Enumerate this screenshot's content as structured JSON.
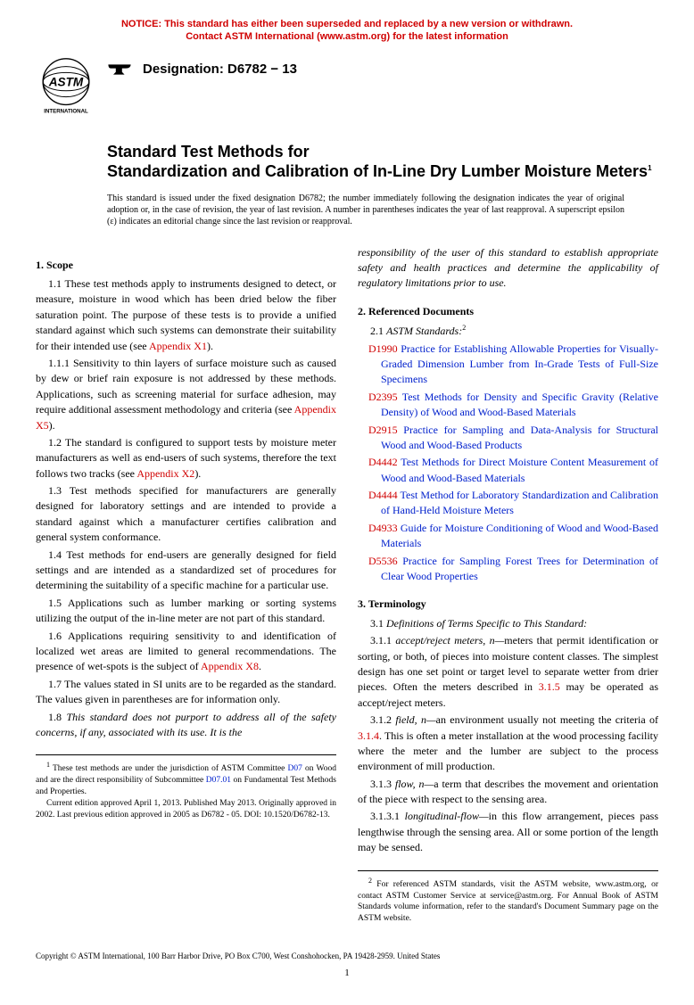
{
  "notice": {
    "line1": "NOTICE: This standard has either been superseded and replaced by a new version or withdrawn.",
    "line2": "Contact ASTM International (www.astm.org) for the latest information"
  },
  "designation": {
    "label": "Designation: D6782 − 13"
  },
  "title": {
    "line1": "Standard Test Methods for",
    "line2": "Standardization and Calibration of In-Line Dry Lumber Moisture Meters",
    "sup": "1"
  },
  "issuance": "This standard is issued under the fixed designation D6782; the number immediately following the designation indicates the year of original adoption or, in the case of revision, the year of last revision. A number in parentheses indicates the year of last reapproval. A superscript epsilon (ε) indicates an editorial change since the last revision or reapproval.",
  "left": {
    "scope_head": "1. Scope",
    "p1_1a": "1.1 These test methods apply to instruments designed to detect, or measure, moisture in wood which has been dried below the fiber saturation point. The purpose of these tests is to provide a unified standard against which such systems can demonstrate their suitability for their intended use (see ",
    "p1_1_link": "Appendix X1",
    "p1_1b": ").",
    "p1_1_1a": "1.1.1 Sensitivity to thin layers of surface moisture such as caused by dew or brief rain exposure is not addressed by these methods. Applications, such as screening material for surface adhesion, may require additional assessment methodology and criteria (see ",
    "p1_1_1_link": "Appendix X5",
    "p1_1_1b": ").",
    "p1_2a": "1.2 The standard is configured to support tests by moisture meter manufacturers as well as end-users of such systems, therefore the text follows two tracks (see ",
    "p1_2_link": "Appendix X2",
    "p1_2b": ").",
    "p1_3": "1.3 Test methods specified for manufacturers are generally designed for laboratory settings and are intended to provide a standard against which a manufacturer certifies calibration and general system conformance.",
    "p1_4": "1.4 Test methods for end-users are generally designed for field settings and are intended as a standardized set of procedures for determining the suitability of a specific machine for a particular use.",
    "p1_5": "1.5 Applications such as lumber marking or sorting systems utilizing the output of the in-line meter are not part of this standard.",
    "p1_6a": "1.6 Applications requiring sensitivity to and identification of localized wet areas are limited to general recommendations. The presence of wet-spots is the subject of ",
    "p1_6_link": "Appendix X8",
    "p1_6b": ".",
    "p1_7": "1.7 The values stated in SI units are to be regarded as the standard. The values given in parentheses are for information only.",
    "p1_8a": "1.8 ",
    "p1_8b": "This standard does not purport to address all of the safety concerns, if any, associated with its use. It is the",
    "fn1a": " These test methods are under the jurisdiction of ASTM Committee ",
    "fn1_link1": "D07",
    "fn1b": " on Wood and are the direct responsibility of Subcommittee ",
    "fn1_link2": "D07.01",
    "fn1c": " on Fundamental Test Methods and Properties.",
    "fn1d": "Current edition approved April 1, 2013. Published May 2013. Originally approved in 2002. Last previous edition approved in 2005 as D6782 - 05. DOI: 10.1520/D6782-13."
  },
  "right": {
    "p1_8c": "responsibility of the user of this standard to establish appropriate safety and health practices and determine the applicability of regulatory limitations prior to use.",
    "refdocs_head": "2. Referenced Documents",
    "p2_1": "2.1 ",
    "p2_1b": "ASTM Standards:",
    "p2_1_sup": "2",
    "refs": [
      {
        "code": "D1990",
        "text": " Practice for Establishing Allowable Properties for Visually-Graded Dimension Lumber from In-Grade Tests of Full-Size Specimens"
      },
      {
        "code": "D2395",
        "text": " Test Methods for Density and Specific Gravity (Relative Density) of Wood and Wood-Based Materials"
      },
      {
        "code": "D2915",
        "text": " Practice for Sampling and Data-Analysis for Structural Wood and Wood-Based Products"
      },
      {
        "code": "D4442",
        "text": " Test Methods for Direct Moisture Content Measurement of Wood and Wood-Based Materials"
      },
      {
        "code": "D4444",
        "text": " Test Method for Laboratory Standardization and Calibration of Hand-Held Moisture Meters"
      },
      {
        "code": "D4933",
        "text": " Guide for Moisture Conditioning of Wood and Wood-Based Materials"
      },
      {
        "code": "D5536",
        "text": " Practice for Sampling Forest Trees for Determination of Clear Wood Properties"
      }
    ],
    "term_head": "3. Terminology",
    "p3_1": "3.1 ",
    "p3_1b": "Definitions of Terms Specific to This Standard:",
    "p3_1_1_num": "3.1.1 ",
    "p3_1_1_term": "accept/reject meters, n—",
    "p3_1_1a": "meters that permit identification or sorting, or both, of pieces into moisture content classes. The simplest design has one set point or target level to separate wetter from drier pieces. Often the meters described in ",
    "p3_1_1_link": "3.1.5",
    "p3_1_1b": " may be operated as accept/reject meters.",
    "p3_1_2_num": "3.1.2 ",
    "p3_1_2_term": "field, n—",
    "p3_1_2a": "an environment usually not meeting the criteria of ",
    "p3_1_2_link": "3.1.4",
    "p3_1_2b": ". This is often a meter installation at the wood processing facility where the meter and the lumber are subject to the process environment of mill production.",
    "p3_1_3_num": "3.1.3 ",
    "p3_1_3_term": "flow, n—",
    "p3_1_3a": "a term that describes the movement and orientation of the piece with respect to the sensing area.",
    "p3_1_3_1_num": "3.1.3.1 ",
    "p3_1_3_1_term": "longitudinal-flow—",
    "p3_1_3_1a": "in this flow arrangement, pieces pass lengthwise through the sensing area. All or some portion of the length may be sensed.",
    "fn2": " For referenced ASTM standards, visit the ASTM website, www.astm.org, or contact ASTM Customer Service at service@astm.org. For Annual Book of ASTM Standards volume information, refer to the standard's Document Summary page on the ASTM website."
  },
  "copyright": "Copyright © ASTM International, 100 Barr Harbor Drive, PO Box C700, West Conshohocken, PA 19428-2959. United States",
  "pagenum": "1"
}
